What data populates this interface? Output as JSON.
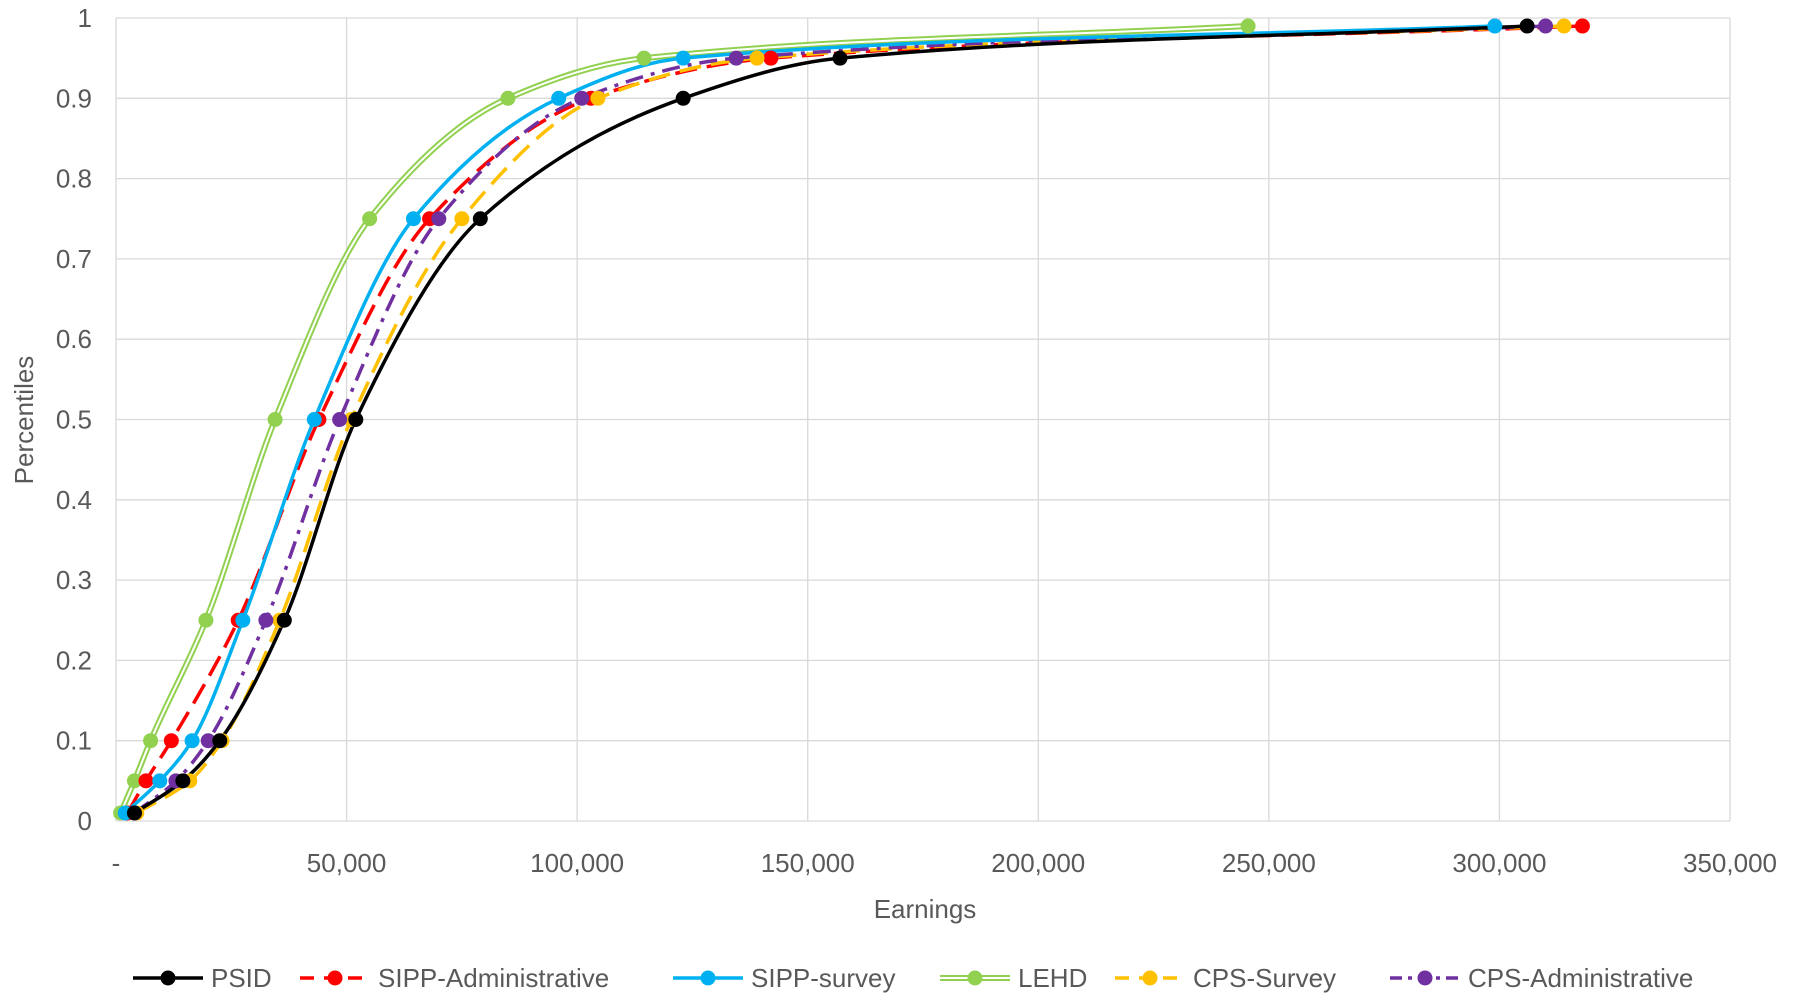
{
  "chart_data": {
    "type": "line",
    "title": "",
    "xlabel": "Earnings",
    "ylabel": "Percentiles",
    "xlim": [
      0,
      350000
    ],
    "ylim": [
      0,
      1
    ],
    "grid": true,
    "legend_position": "bottom",
    "x_tick_labels": [
      "-",
      "50,000",
      "100,000",
      "150,000",
      "200,000",
      "250,000",
      "300,000",
      "350,000"
    ],
    "x_ticks": [
      0,
      50000,
      100000,
      150000,
      200000,
      250000,
      300000,
      350000
    ],
    "y_tick_labels": [
      "0",
      "0.1",
      "0.2",
      "0.3",
      "0.4",
      "0.5",
      "0.6",
      "0.7",
      "0.8",
      "0.9",
      "1"
    ],
    "y_ticks": [
      0,
      0.1,
      0.2,
      0.3,
      0.4,
      0.5,
      0.6,
      0.7,
      0.8,
      0.9,
      1.0
    ],
    "percentiles": [
      0.01,
      0.05,
      0.1,
      0.25,
      0.5,
      0.75,
      0.9,
      0.95,
      0.99
    ],
    "series": [
      {
        "name": "PSID",
        "color": "#000000",
        "style": "solid",
        "x": [
          4000,
          14500,
          22500,
          36500,
          52000,
          79000,
          123000,
          157000,
          306000
        ]
      },
      {
        "name": "SIPP-Administrative",
        "color": "#ff0000",
        "style": "dash",
        "x": [
          2500,
          6500,
          12000,
          26500,
          44000,
          68000,
          103000,
          142000,
          318000
        ]
      },
      {
        "name": "SIPP-survey",
        "color": "#00b0f0",
        "style": "solid",
        "x": [
          2000,
          9500,
          16500,
          27500,
          43000,
          64500,
          96000,
          123000,
          299000
        ]
      },
      {
        "name": "LEHD",
        "color": "#92d050",
        "style": "double",
        "x": [
          1000,
          4000,
          7500,
          19500,
          34500,
          55000,
          85000,
          114500,
          245500
        ]
      },
      {
        "name": "CPS-Survey",
        "color": "#ffc000",
        "style": "dash",
        "x": [
          4500,
          16000,
          23000,
          35500,
          51000,
          75000,
          104500,
          139000,
          314000
        ]
      },
      {
        "name": "CPS-Administrative",
        "color": "#7030a0",
        "style": "dashdot",
        "x": [
          4000,
          13000,
          20000,
          32500,
          48500,
          70000,
          101000,
          134500,
          310000
        ]
      }
    ]
  }
}
